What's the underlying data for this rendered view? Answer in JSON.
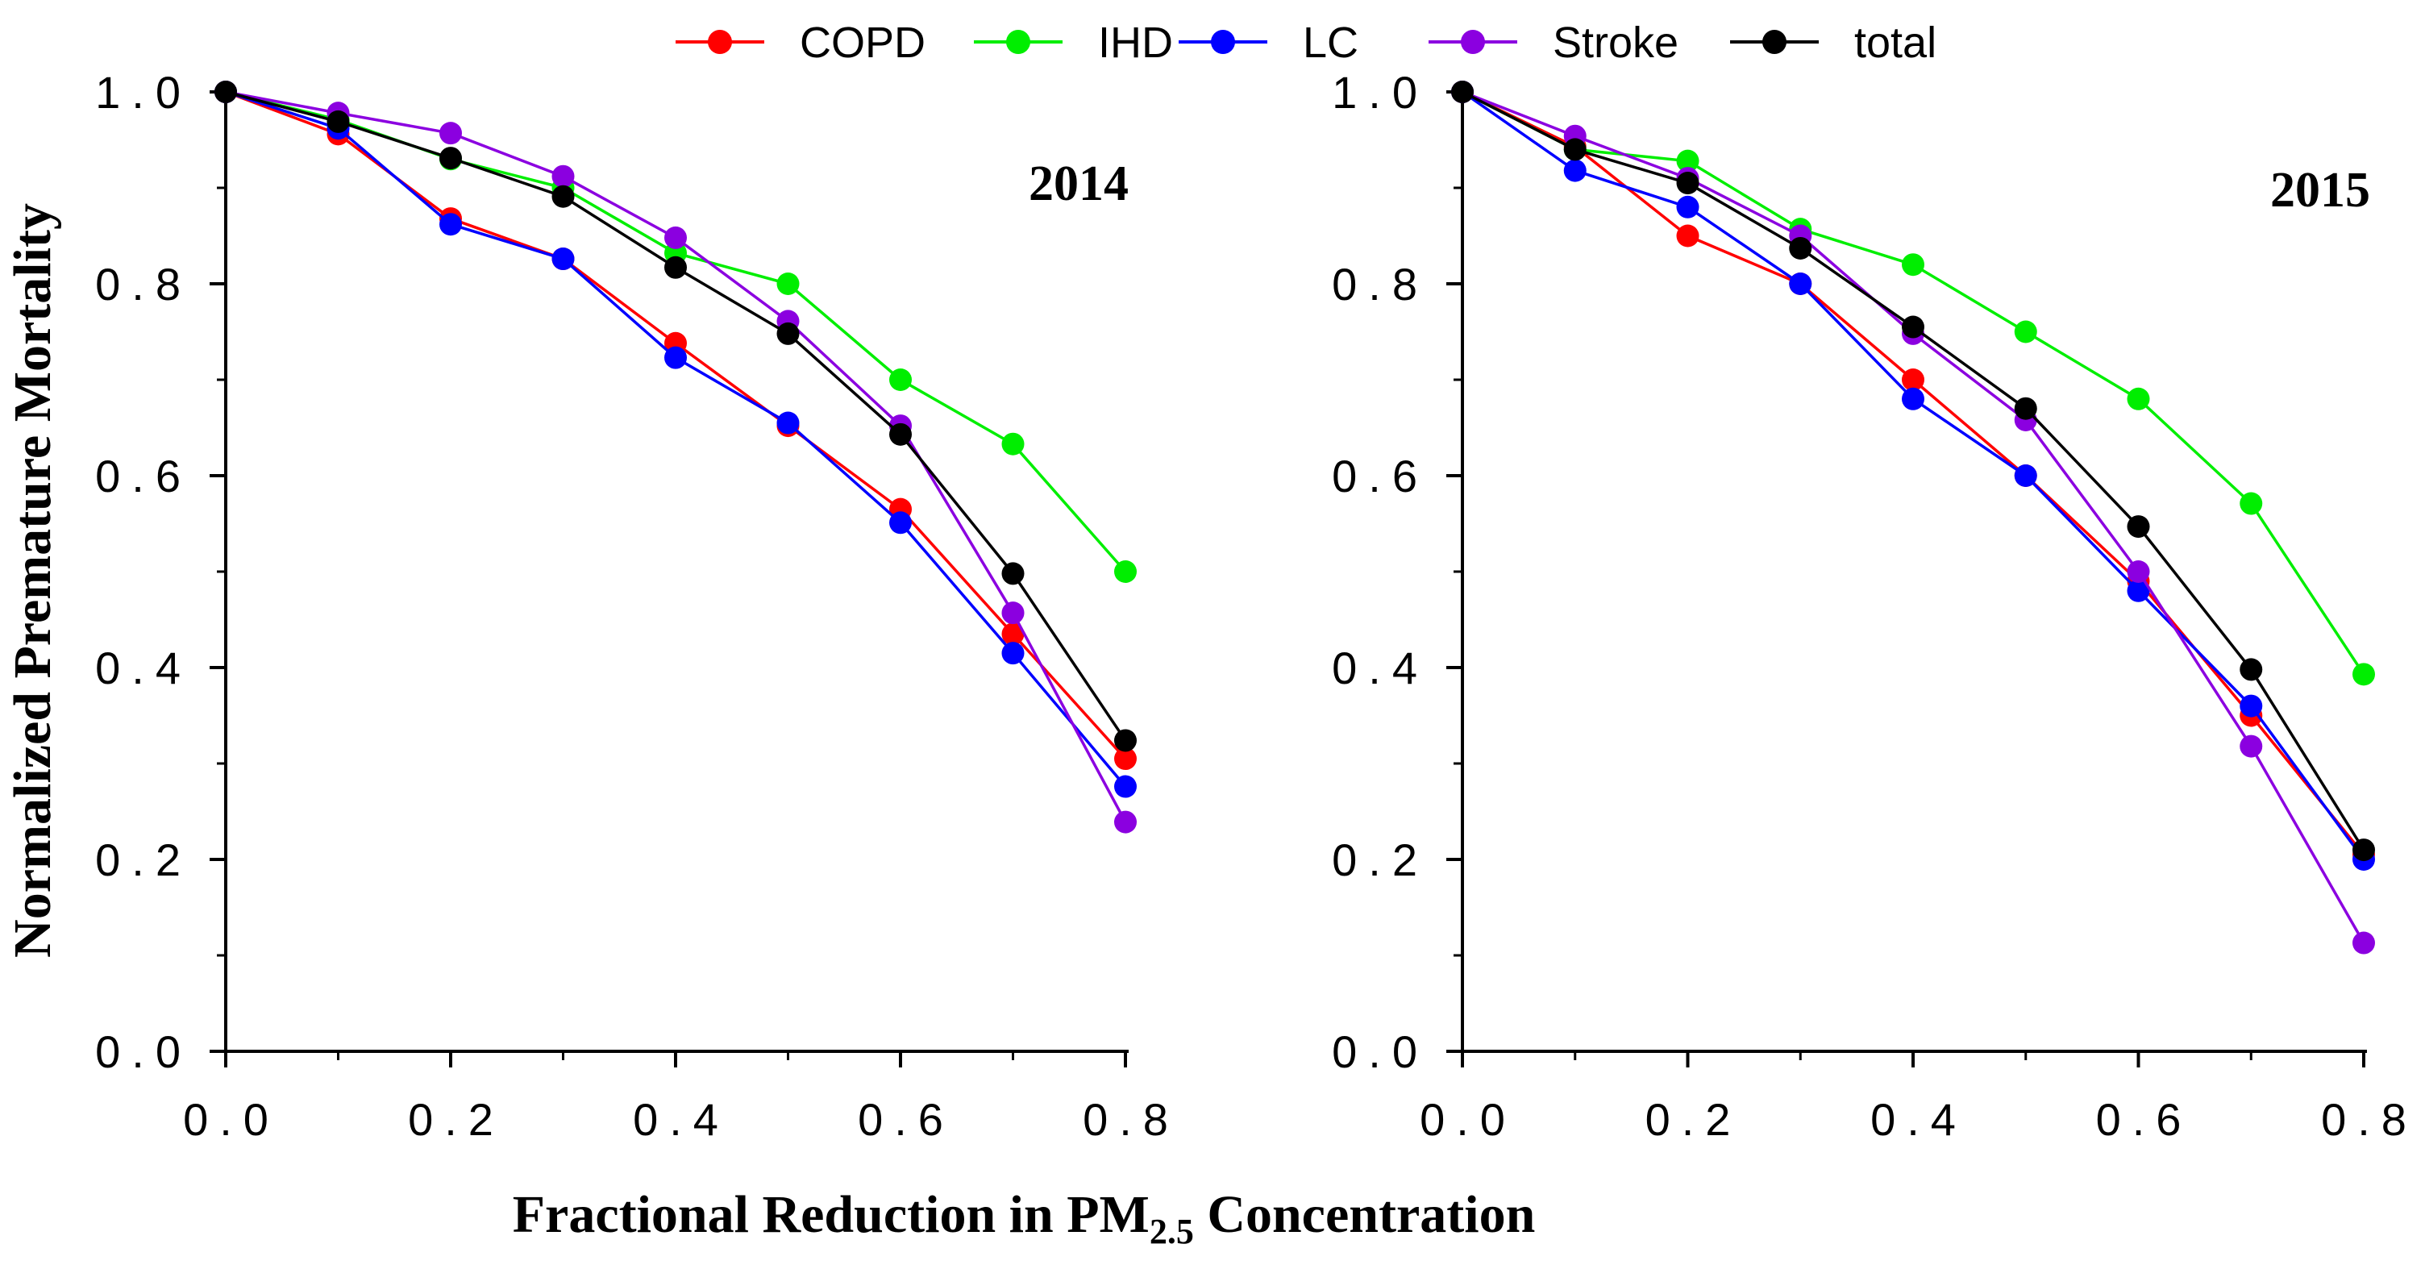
{
  "ylabel": "Normalized Premature Mortality",
  "xlabel": {
    "main": "Fractional Reduction in PM",
    "sub": "2.5",
    "tail": " Concentration"
  },
  "legend": [
    {
      "name": "COPD",
      "color": "#ff0000"
    },
    {
      "name": "IHD",
      "color": "#00ee00"
    },
    {
      "name": "LC",
      "color": "#0000ff"
    },
    {
      "name": "Stroke",
      "color": "#8b00e0"
    },
    {
      "name": "total",
      "color": "#000000"
    }
  ],
  "chart_data": [
    {
      "type": "line",
      "title": "2014",
      "xlabel": "Fractional Reduction in PM2.5 Concentration",
      "ylabel": "Normalized Premature Mortality",
      "xlim": [
        0,
        0.8
      ],
      "ylim": [
        0,
        1.0
      ],
      "xticks": [
        "0.0",
        "0.2",
        "0.4",
        "0.6",
        "0.8"
      ],
      "yticks": [
        "0.0",
        "0.2",
        "0.4",
        "0.6",
        "0.8",
        "1.0"
      ],
      "x": [
        0.0,
        0.1,
        0.2,
        0.3,
        0.4,
        0.5,
        0.6,
        0.7,
        0.8
      ],
      "series": [
        {
          "name": "COPD",
          "values": [
            1.0,
            0.956,
            0.868,
            0.826,
            0.738,
            0.652,
            0.565,
            0.435,
            0.305
          ]
        },
        {
          "name": "IHD",
          "values": [
            1.0,
            0.971,
            0.93,
            0.9,
            0.832,
            0.8,
            0.7,
            0.633,
            0.5
          ]
        },
        {
          "name": "LC",
          "values": [
            1.0,
            0.962,
            0.862,
            0.826,
            0.723,
            0.655,
            0.551,
            0.415,
            0.276
          ]
        },
        {
          "name": "Stroke",
          "values": [
            1.0,
            0.978,
            0.957,
            0.912,
            0.848,
            0.761,
            0.652,
            0.457,
            0.239
          ]
        },
        {
          "name": "total",
          "values": [
            1.0,
            0.969,
            0.931,
            0.891,
            0.817,
            0.748,
            0.643,
            0.498,
            0.324
          ]
        }
      ]
    },
    {
      "type": "line",
      "title": "2015",
      "xlabel": "Fractional Reduction in PM2.5 Concentration",
      "ylabel": "",
      "xlim": [
        0,
        0.8
      ],
      "ylim": [
        0,
        1.0
      ],
      "xticks": [
        "0.0",
        "0.2",
        "0.4",
        "0.6",
        "0.8"
      ],
      "yticks": [
        "0.0",
        "0.2",
        "0.4",
        "0.6",
        "0.8",
        "1.0"
      ],
      "x": [
        0.0,
        0.1,
        0.2,
        0.3,
        0.4,
        0.5,
        0.6,
        0.7,
        0.8
      ],
      "series": [
        {
          "name": "COPD",
          "values": [
            1.0,
            0.943,
            0.85,
            0.8,
            0.7,
            0.6,
            0.49,
            0.35,
            0.205
          ]
        },
        {
          "name": "IHD",
          "values": [
            1.0,
            0.94,
            0.928,
            0.857,
            0.82,
            0.75,
            0.68,
            0.571,
            0.393
          ]
        },
        {
          "name": "LC",
          "values": [
            1.0,
            0.918,
            0.88,
            0.8,
            0.68,
            0.6,
            0.48,
            0.36,
            0.2
          ]
        },
        {
          "name": "Stroke",
          "values": [
            1.0,
            0.954,
            0.91,
            0.85,
            0.748,
            0.658,
            0.5,
            0.318,
            0.113
          ]
        },
        {
          "name": "total",
          "values": [
            1.0,
            0.94,
            0.905,
            0.837,
            0.755,
            0.67,
            0.547,
            0.398,
            0.21
          ]
        }
      ]
    }
  ]
}
